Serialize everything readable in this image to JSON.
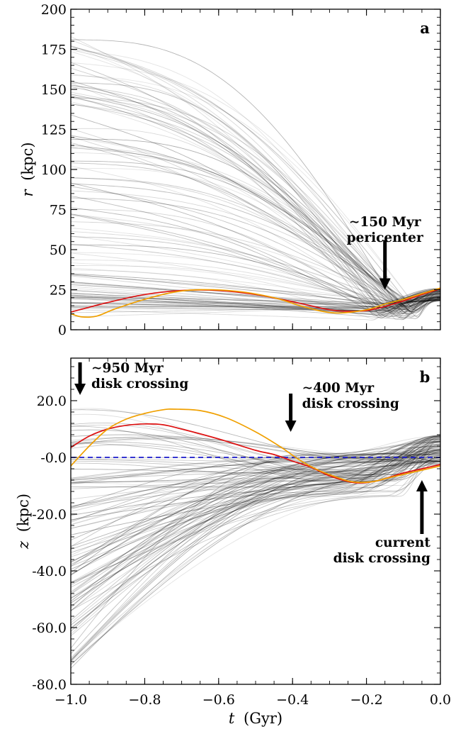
{
  "chart_data": [
    {
      "panel": "a",
      "type": "line",
      "xlabel": "",
      "ylabel_var": "r",
      "ylabel_unit": "(kpc)",
      "xlim": [
        -1.0,
        0.0
      ],
      "ylim": [
        0,
        200
      ],
      "x_ticks": [
        "",
        "",
        "",
        "",
        "",
        ""
      ],
      "y_ticks": [
        "0",
        "25",
        "50",
        "75",
        "100",
        "125",
        "150",
        "175",
        "200"
      ],
      "grid": false,
      "background_orbits": {
        "description_hidden": true,
        "count": 110,
        "color": "#000000",
        "final_r_range": [
          18,
          26
        ],
        "start_r_range": [
          8,
          185
        ]
      },
      "highlighted_series": [
        {
          "color": "#dd1111",
          "points": [
            [
              -1.0,
              11
            ],
            [
              -0.9,
              17
            ],
            [
              -0.8,
              22
            ],
            [
              -0.7,
              24.5
            ],
            [
              -0.6,
              24.5
            ],
            [
              -0.5,
              22
            ],
            [
              -0.4,
              17.5
            ],
            [
              -0.3,
              12.5
            ],
            [
              -0.25,
              11.5
            ],
            [
              -0.2,
              12
            ],
            [
              -0.15,
              14.5
            ],
            [
              -0.1,
              18
            ],
            [
              -0.05,
              22
            ],
            [
              0.0,
              25.5
            ]
          ]
        },
        {
          "color": "#f0a000",
          "points": [
            [
              -1.0,
              10
            ],
            [
              -0.97,
              8
            ],
            [
              -0.93,
              8.5
            ],
            [
              -0.88,
              13
            ],
            [
              -0.8,
              19
            ],
            [
              -0.72,
              23.5
            ],
            [
              -0.65,
              25
            ],
            [
              -0.55,
              24
            ],
            [
              -0.45,
              20
            ],
            [
              -0.38,
              15
            ],
            [
              -0.32,
              11.5
            ],
            [
              -0.27,
              10.5
            ],
            [
              -0.2,
              12.5
            ],
            [
              -0.15,
              16
            ],
            [
              -0.1,
              19
            ],
            [
              -0.05,
              22.5
            ],
            [
              0.0,
              26
            ]
          ]
        }
      ],
      "annotations": [
        {
          "lines": [
            "~150 Myr",
            "pericenter"
          ],
          "arrow_direction": "down",
          "x": -0.15,
          "arrow_from_y": 56,
          "arrow_to_y": 25
        }
      ]
    },
    {
      "panel": "b",
      "type": "line",
      "xlabel_var": "t",
      "xlabel_unit": "(Gyr)",
      "ylabel_var": "z",
      "ylabel_unit": "(kpc)",
      "xlim": [
        -1.0,
        0.0
      ],
      "ylim": [
        -80,
        35
      ],
      "x_ticks": [
        "−1.0",
        "−0.8",
        "−0.6",
        "−0.4",
        "−0.2",
        "0.0"
      ],
      "y_ticks": [
        "-80.0",
        "-60.0",
        "-40.0",
        "-20.0",
        "-0.0",
        "20.0"
      ],
      "grid": false,
      "background_orbits": {
        "count": 110,
        "color": "#000000",
        "final_z_range": [
          -3,
          8
        ],
        "start_z_range": [
          -75,
          18
        ]
      },
      "reference_line": {
        "y": 0,
        "color": "#1a1acc",
        "style": "dashed"
      },
      "highlighted_series": [
        {
          "color": "#dd1111",
          "points": [
            [
              -1.0,
              3.5
            ],
            [
              -0.95,
              7.5
            ],
            [
              -0.9,
              10
            ],
            [
              -0.85,
              11.3
            ],
            [
              -0.8,
              11.8
            ],
            [
              -0.75,
              11.5
            ],
            [
              -0.7,
              10
            ],
            [
              -0.6,
              6.5
            ],
            [
              -0.5,
              2.5
            ],
            [
              -0.45,
              1
            ],
            [
              -0.4,
              -1.3
            ],
            [
              -0.35,
              -3.5
            ],
            [
              -0.3,
              -6.5
            ],
            [
              -0.25,
              -8.5
            ],
            [
              -0.22,
              -9
            ],
            [
              -0.18,
              -8.5
            ],
            [
              -0.15,
              -7.5
            ],
            [
              -0.1,
              -5.5
            ],
            [
              -0.05,
              -4
            ],
            [
              0.0,
              -2.5
            ]
          ]
        },
        {
          "color": "#f0a000",
          "points": [
            [
              -1.0,
              -3
            ],
            [
              -0.95,
              4
            ],
            [
              -0.9,
              10
            ],
            [
              -0.85,
              13.5
            ],
            [
              -0.8,
              15.5
            ],
            [
              -0.75,
              16.8
            ],
            [
              -0.72,
              17
            ],
            [
              -0.65,
              16.5
            ],
            [
              -0.58,
              14
            ],
            [
              -0.5,
              9
            ],
            [
              -0.43,
              3.5
            ],
            [
              -0.38,
              -1
            ],
            [
              -0.33,
              -4.5
            ],
            [
              -0.28,
              -7
            ],
            [
              -0.25,
              -8.3
            ],
            [
              -0.22,
              -8.8
            ],
            [
              -0.18,
              -8.5
            ],
            [
              -0.15,
              -7.5
            ],
            [
              -0.1,
              -6
            ],
            [
              -0.05,
              -4.5
            ],
            [
              0.0,
              -3
            ]
          ]
        }
      ],
      "annotations": [
        {
          "lines": [
            "~950 Myr",
            "disk crossing"
          ],
          "arrow_direction": "down",
          "x": -0.975,
          "arrow_from_y": 33.5,
          "arrow_to_y": 22
        },
        {
          "lines": [
            "~400 Myr",
            "disk crossing"
          ],
          "arrow_direction": "down",
          "x": -0.405,
          "arrow_from_y": 22.5,
          "arrow_to_y": 9
        },
        {
          "lines": [
            "current",
            "disk crossing"
          ],
          "arrow_direction": "up",
          "x": -0.05,
          "arrow_from_y": -27,
          "arrow_to_y": -8
        }
      ]
    }
  ]
}
